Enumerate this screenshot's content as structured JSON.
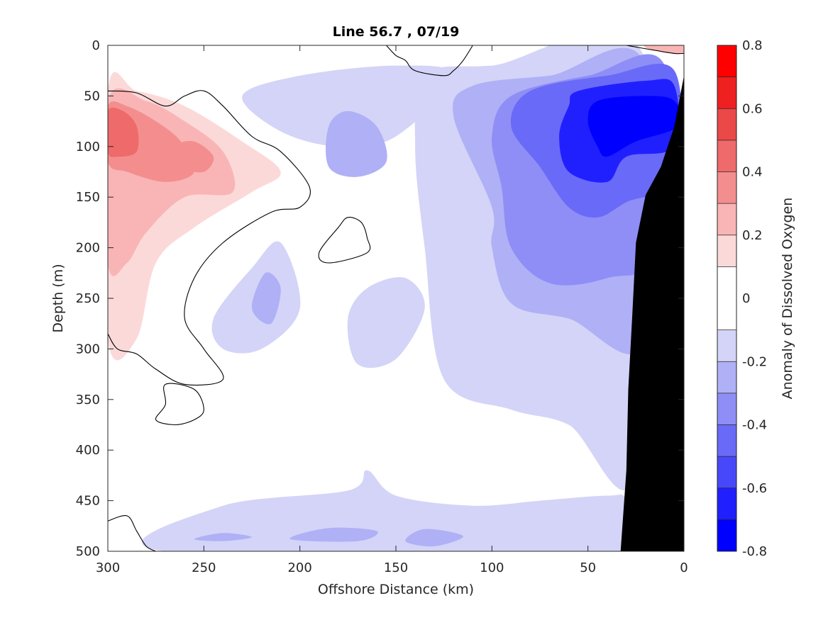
{
  "chart_data": {
    "type": "heatmap",
    "subtype": "filled-contour",
    "title": "Line 56.7 , 07/19",
    "xlabel": "Offshore Distance (km)",
    "ylabel": "Depth (m)",
    "xlim": [
      300,
      0
    ],
    "ylim": [
      500,
      0
    ],
    "x_reversed": true,
    "y_reversed": true,
    "x_ticks": [
      "300",
      "250",
      "200",
      "150",
      "100",
      "50",
      "0"
    ],
    "y_ticks": [
      "0",
      "50",
      "100",
      "150",
      "200",
      "250",
      "300",
      "350",
      "400",
      "450",
      "500"
    ],
    "grid": false,
    "colorbar": {
      "label": "Anomaly of Dissolved Oxygen",
      "range": [
        -0.8,
        0.8
      ],
      "ticks": [
        "0.8",
        "0.6",
        "0.4",
        "0.2",
        "0",
        "-0.2",
        "-0.4",
        "-0.6",
        "-0.8"
      ],
      "levels": [
        -0.8,
        -0.7,
        -0.6,
        -0.5,
        -0.4,
        -0.3,
        -0.2,
        -0.1,
        0.1,
        0.2,
        0.3,
        0.4,
        0.5,
        0.6,
        0.7,
        0.8
      ],
      "colors": [
        "#0000ff",
        "#2020ff",
        "#4848fb",
        "#6a6af8",
        "#8e8ef6",
        "#b0b0f6",
        "#d4d4f8",
        "#ffffff",
        "#fcd9d9",
        "#f9b5b5",
        "#f48e8e",
        "#ef6a6a",
        "#eb4848",
        "#ef2020",
        "#ff0000"
      ]
    },
    "bathymetry_color": "#000000",
    "contour_fields": [
      {
        "name": "strong-low-core",
        "level": -0.7,
        "points": [
          [
            45,
            55
          ],
          [
            20,
            50
          ],
          [
            5,
            55
          ],
          [
            3,
            80
          ],
          [
            25,
            95
          ],
          [
            40,
            110
          ],
          [
            45,
            100
          ],
          [
            50,
            75
          ]
        ]
      },
      {
        "name": "low-core",
        "level": -0.6,
        "points": [
          [
            55,
            45
          ],
          [
            20,
            35
          ],
          [
            5,
            40
          ],
          [
            5,
            100
          ],
          [
            30,
            110
          ],
          [
            40,
            135
          ],
          [
            60,
            125
          ],
          [
            65,
            90
          ],
          [
            60,
            60
          ]
        ]
      },
      {
        "name": "low-shelf",
        "level": -0.45,
        "points": [
          [
            80,
            45
          ],
          [
            40,
            30
          ],
          [
            5,
            25
          ],
          [
            5,
            130
          ],
          [
            30,
            155
          ],
          [
            45,
            170
          ],
          [
            60,
            160
          ],
          [
            75,
            120
          ],
          [
            90,
            80
          ]
        ]
      },
      {
        "name": "low-deep",
        "level": -0.35,
        "points": [
          [
            90,
            50
          ],
          [
            50,
            30
          ],
          [
            10,
            20
          ],
          [
            10,
            200
          ],
          [
            40,
            230
          ],
          [
            70,
            235
          ],
          [
            90,
            200
          ],
          [
            95,
            140
          ],
          [
            100,
            90
          ]
        ]
      },
      {
        "name": "low-upper",
        "level": -0.25,
        "points": [
          [
            110,
            40
          ],
          [
            70,
            30
          ],
          [
            20,
            20
          ],
          [
            20,
            290
          ],
          [
            60,
            270
          ],
          [
            90,
            255
          ],
          [
            100,
            200
          ],
          [
            100,
            160
          ],
          [
            120,
            70
          ]
        ]
      },
      {
        "name": "weak-low-east",
        "level": -0.15,
        "points": [
          [
            135,
            30
          ],
          [
            100,
            20
          ],
          [
            20,
            15
          ],
          [
            25,
            420
          ],
          [
            60,
            375
          ],
          [
            90,
            360
          ],
          [
            125,
            330
          ],
          [
            135,
            200
          ],
          [
            140,
            100
          ]
        ]
      },
      {
        "name": "weak-low-mid",
        "level": -0.15,
        "points": [
          [
            230,
            50
          ],
          [
            200,
            30
          ],
          [
            150,
            20
          ],
          [
            120,
            30
          ],
          [
            150,
            90
          ],
          [
            180,
            100
          ],
          [
            210,
            85
          ]
        ]
      },
      {
        "name": "weak-low-center",
        "level": -0.2,
        "points": [
          [
            185,
            80
          ],
          [
            175,
            65
          ],
          [
            160,
            80
          ],
          [
            155,
            115
          ],
          [
            170,
            130
          ],
          [
            185,
            120
          ]
        ]
      },
      {
        "name": "weak-low-west",
        "level": -0.15,
        "points": [
          [
            245,
            270
          ],
          [
            225,
            220
          ],
          [
            210,
            195
          ],
          [
            200,
            260
          ],
          [
            220,
            300
          ],
          [
            240,
            300
          ]
        ]
      },
      {
        "name": "weak-low-west-core",
        "level": -0.25,
        "points": [
          [
            225,
            260
          ],
          [
            218,
            225
          ],
          [
            210,
            240
          ],
          [
            215,
            275
          ]
        ]
      },
      {
        "name": "weak-low-mid-deep",
        "level": -0.15,
        "points": [
          [
            175,
            270
          ],
          [
            165,
            240
          ],
          [
            145,
            230
          ],
          [
            135,
            260
          ],
          [
            150,
            310
          ],
          [
            170,
            315
          ]
        ]
      },
      {
        "name": "weak-low-bottom",
        "level": -0.15,
        "points": [
          [
            270,
            500
          ],
          [
            240,
            455
          ],
          [
            175,
            440
          ],
          [
            165,
            420
          ],
          [
            150,
            445
          ],
          [
            110,
            455
          ],
          [
            75,
            450
          ],
          [
            40,
            445
          ],
          [
            30,
            450
          ],
          [
            30,
            500
          ]
        ]
      },
      {
        "name": "bottom-patch-1",
        "level": -0.25,
        "points": [
          [
            255,
            488
          ],
          [
            240,
            482
          ],
          [
            225,
            486
          ],
          [
            240,
            490
          ]
        ]
      },
      {
        "name": "bottom-patch-2",
        "level": -0.25,
        "points": [
          [
            205,
            488
          ],
          [
            185,
            477
          ],
          [
            160,
            480
          ],
          [
            170,
            490
          ]
        ]
      },
      {
        "name": "bottom-patch-3",
        "level": -0.25,
        "points": [
          [
            145,
            490
          ],
          [
            135,
            478
          ],
          [
            115,
            485
          ],
          [
            130,
            495
          ]
        ]
      },
      {
        "name": "warm-west",
        "level": 0.15,
        "points": [
          [
            300,
            45
          ],
          [
            285,
            45
          ],
          [
            260,
            60
          ],
          [
            230,
            95
          ],
          [
            210,
            125
          ],
          [
            225,
            145
          ],
          [
            255,
            180
          ],
          [
            275,
            215
          ],
          [
            285,
            290
          ],
          [
            300,
            290
          ]
        ]
      },
      {
        "name": "warm-west-mid",
        "level": 0.25,
        "points": [
          [
            300,
            55
          ],
          [
            280,
            55
          ],
          [
            260,
            75
          ],
          [
            240,
            105
          ],
          [
            235,
            145
          ],
          [
            260,
            150
          ],
          [
            280,
            185
          ],
          [
            290,
            215
          ],
          [
            300,
            215
          ]
        ]
      },
      {
        "name": "warm-west-core",
        "level": 0.35,
        "points": [
          [
            300,
            60
          ],
          [
            290,
            60
          ],
          [
            275,
            75
          ],
          [
            262,
            95
          ],
          [
            255,
            125
          ],
          [
            270,
            135
          ],
          [
            290,
            125
          ],
          [
            300,
            115
          ]
        ]
      },
      {
        "name": "warm-west-center",
        "level": 0.45,
        "points": [
          [
            300,
            65
          ],
          [
            292,
            65
          ],
          [
            285,
            80
          ],
          [
            285,
            105
          ],
          [
            295,
            110
          ],
          [
            300,
            105
          ]
        ]
      },
      {
        "name": "warm-west-lens",
        "level": 0.35,
        "points": [
          [
            265,
            100
          ],
          [
            255,
            95
          ],
          [
            245,
            110
          ],
          [
            250,
            125
          ],
          [
            262,
            120
          ]
        ]
      },
      {
        "name": "warm-surface",
        "level": 0.25,
        "points": [
          [
            20,
            0
          ],
          [
            0,
            0
          ],
          [
            0,
            8
          ],
          [
            15,
            5
          ]
        ]
      }
    ],
    "zero_contours": [
      {
        "name": "zero-west",
        "points": [
          [
            300,
            45
          ],
          [
            285,
            47
          ],
          [
            270,
            60
          ],
          [
            260,
            50
          ],
          [
            250,
            45
          ],
          [
            240,
            60
          ],
          [
            225,
            90
          ],
          [
            210,
            105
          ],
          [
            195,
            140
          ],
          [
            200,
            160
          ],
          [
            215,
            165
          ],
          [
            240,
            195
          ],
          [
            255,
            230
          ],
          [
            260,
            270
          ],
          [
            250,
            300
          ],
          [
            240,
            330
          ],
          [
            260,
            335
          ],
          [
            275,
            320
          ],
          [
            285,
            305
          ],
          [
            295,
            300
          ],
          [
            300,
            285
          ]
        ]
      },
      {
        "name": "zero-eddy",
        "points": [
          [
            175,
            170
          ],
          [
            180,
            180
          ],
          [
            190,
            205
          ],
          [
            185,
            215
          ],
          [
            165,
            205
          ],
          [
            165,
            190
          ],
          [
            168,
            175
          ],
          [
            175,
            170
          ]
        ]
      },
      {
        "name": "zero-deep-loop",
        "points": [
          [
            270,
            335
          ],
          [
            255,
            340
          ],
          [
            250,
            360
          ],
          [
            255,
            370
          ],
          [
            265,
            375
          ],
          [
            275,
            370
          ],
          [
            270,
            355
          ],
          [
            270,
            335
          ]
        ]
      },
      {
        "name": "zero-surface",
        "points": [
          [
            110,
            0
          ],
          [
            115,
            15
          ],
          [
            120,
            25
          ],
          [
            125,
            30
          ],
          [
            140,
            25
          ],
          [
            145,
            15
          ],
          [
            150,
            10
          ],
          [
            155,
            0
          ]
        ]
      },
      {
        "name": "zero-southwest",
        "points": [
          [
            300,
            470
          ],
          [
            290,
            465
          ],
          [
            285,
            480
          ],
          [
            280,
            495
          ],
          [
            275,
            500
          ]
        ]
      },
      {
        "name": "zero-shore-surface",
        "points": [
          [
            30,
            0
          ],
          [
            15,
            5
          ],
          [
            5,
            8
          ],
          [
            0,
            8
          ]
        ]
      }
    ],
    "bathymetry": [
      [
        0,
        30
      ],
      [
        0,
        500
      ],
      [
        33,
        500
      ],
      [
        30,
        420
      ],
      [
        29,
        340
      ],
      [
        27,
        270
      ],
      [
        25,
        195
      ],
      [
        20,
        148
      ],
      [
        12,
        120
      ],
      [
        5,
        80
      ],
      [
        0,
        30
      ]
    ]
  }
}
